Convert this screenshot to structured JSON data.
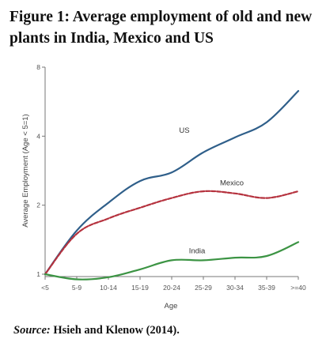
{
  "caption": {
    "title": "Figure 1: Average employment of old and new plants in India, Mexico and US",
    "source_label": "Source:",
    "source_text": " Hsieh and Klenow (2014)."
  },
  "chart_data": {
    "type": "line",
    "title": "",
    "xlabel": "Age",
    "ylabel": "Average Employment (Age < 5=1)",
    "y_scale": "log",
    "ylim": [
      1,
      8
    ],
    "yticks": [
      1,
      2,
      4,
      8
    ],
    "ytick_labels": [
      "1",
      "2",
      "4",
      "8"
    ],
    "categories": [
      "<5",
      "5-9",
      "10-14",
      "15-19",
      "20-24",
      "25-29",
      "30-34",
      "35-39",
      ">=40"
    ],
    "grid": false,
    "legend": "none",
    "series": [
      {
        "name": "US",
        "color": "#2f5f8a",
        "dash": "solid",
        "values": [
          1.0,
          1.55,
          2.05,
          2.55,
          2.78,
          3.4,
          3.95,
          4.6,
          6.3
        ]
      },
      {
        "name": "Mexico",
        "color": "#b5323e",
        "dash": "dashed",
        "values": [
          1.0,
          1.5,
          1.75,
          1.95,
          2.15,
          2.3,
          2.25,
          2.15,
          2.3
        ]
      },
      {
        "name": "India",
        "color": "#3c9444",
        "dash": "solid",
        "values": [
          1.0,
          0.95,
          0.97,
          1.05,
          1.15,
          1.15,
          1.18,
          1.2,
          1.38
        ]
      }
    ]
  }
}
